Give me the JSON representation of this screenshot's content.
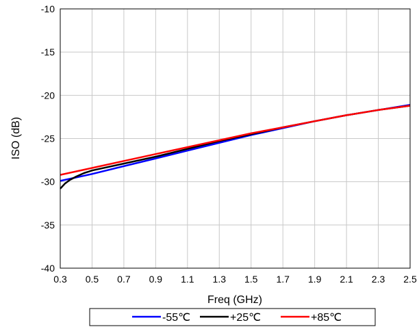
{
  "chart_data": {
    "type": "line",
    "title": "",
    "xlabel": "Freq (GHz)",
    "ylabel": "ISO (dB)",
    "xlim": [
      0.3,
      2.5
    ],
    "ylim": [
      -40,
      -10
    ],
    "xticks": [
      "0.3",
      "0.5",
      "0.7",
      "0.9",
      "1.1",
      "1.3",
      "1.5",
      "1.7",
      "1.9",
      "2.1",
      "2.3",
      "2.5"
    ],
    "yticks": [
      "-10",
      "-15",
      "-20",
      "-25",
      "-30",
      "-35",
      "-40"
    ],
    "grid": true,
    "legend_position": "bottom",
    "series": [
      {
        "name": "-55℃",
        "color": "#0000ff",
        "x": [
          0.3,
          0.35,
          0.4,
          0.5,
          0.7,
          0.9,
          1.1,
          1.3,
          1.5,
          1.7,
          1.9,
          2.1,
          2.3,
          2.5
        ],
        "y": [
          -29.9,
          -29.7,
          -29.5,
          -29.1,
          -28.2,
          -27.3,
          -26.4,
          -25.5,
          -24.6,
          -23.8,
          -23.0,
          -22.3,
          -21.7,
          -21.1
        ]
      },
      {
        "name": "+25℃",
        "color": "#000000",
        "x": [
          0.3,
          0.33,
          0.36,
          0.4,
          0.45,
          0.5,
          0.7,
          0.9,
          1.1,
          1.3,
          1.5,
          1.7,
          1.9,
          2.1,
          2.3,
          2.5
        ],
        "y": [
          -30.8,
          -30.2,
          -29.8,
          -29.4,
          -29.0,
          -28.7,
          -27.9,
          -27.1,
          -26.2,
          -25.3,
          -24.5,
          -23.7,
          -23.0,
          -22.3,
          -21.7,
          -21.2
        ]
      },
      {
        "name": "+85℃",
        "color": "#ff0000",
        "x": [
          0.3,
          0.5,
          0.7,
          0.9,
          1.1,
          1.3,
          1.5,
          1.7,
          1.9,
          2.1,
          2.3,
          2.5
        ],
        "y": [
          -29.2,
          -28.4,
          -27.6,
          -26.8,
          -26.0,
          -25.2,
          -24.4,
          -23.7,
          -23.0,
          -22.3,
          -21.7,
          -21.2
        ]
      }
    ]
  }
}
